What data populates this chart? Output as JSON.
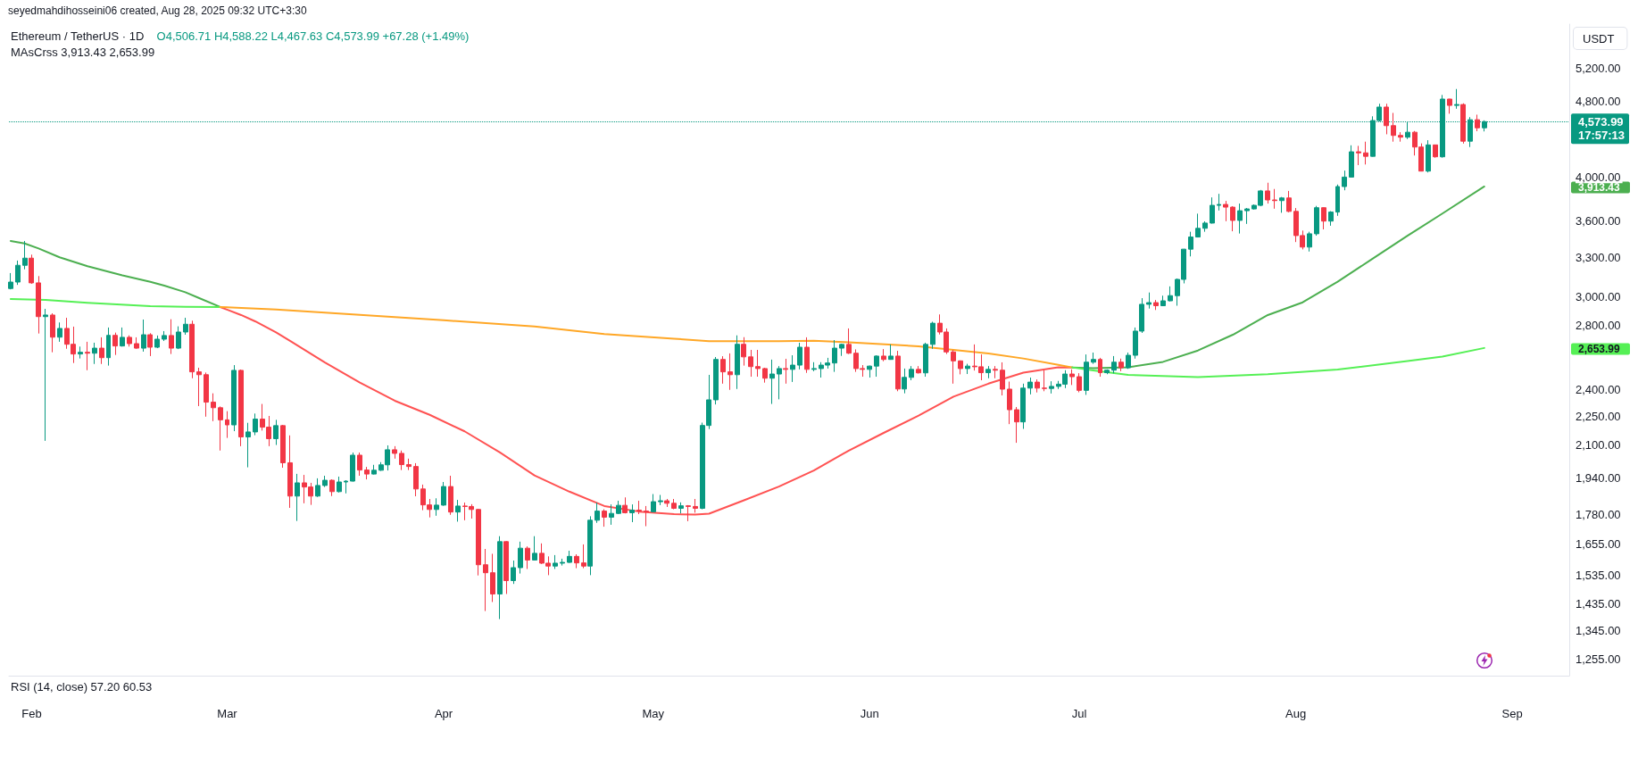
{
  "chart_data": {
    "type": "candlestick",
    "title": "Ethereum / TetherUS · 1D",
    "subtitle": "O4,506.71 H4,588.22 L4,467.63 C4,573.99 +67.28 (+1.49%)",
    "ylabel": "USDT",
    "annotations": [
      "seyedmahdihosseini06 created, Aug 28, 2025 09:32 UTC+3:30",
      "MAsCrss 3,913.43 2,653.99",
      "RSI (14, close) 57.20 60.53",
      "17:57:13",
      "3,913.43",
      "2,653.99"
    ],
    "x": [
      "2025-01-29",
      "2025-01-30",
      "2025-01-31",
      "2025-02-01",
      "2025-02-02",
      "2025-02-03",
      "2025-02-04",
      "2025-02-05",
      "2025-02-06",
      "2025-02-07",
      "2025-02-08",
      "2025-02-09",
      "2025-02-10",
      "2025-02-11",
      "2025-02-12",
      "2025-02-13",
      "2025-02-14",
      "2025-02-15",
      "2025-02-16",
      "2025-02-17",
      "2025-02-18",
      "2025-02-19",
      "2025-02-20",
      "2025-02-21",
      "2025-02-22",
      "2025-02-23",
      "2025-02-24",
      "2025-02-25",
      "2025-02-26",
      "2025-02-27",
      "2025-02-28",
      "2025-03-01",
      "2025-03-02",
      "2025-03-03",
      "2025-03-04",
      "2025-03-05",
      "2025-03-06",
      "2025-03-07",
      "2025-03-08",
      "2025-03-09",
      "2025-03-10",
      "2025-03-11",
      "2025-03-12",
      "2025-03-13",
      "2025-03-14",
      "2025-03-15",
      "2025-03-16",
      "2025-03-17",
      "2025-03-18",
      "2025-03-19",
      "2025-03-20",
      "2025-03-21",
      "2025-03-22",
      "2025-03-23",
      "2025-03-24",
      "2025-03-25",
      "2025-03-26",
      "2025-03-27",
      "2025-03-28",
      "2025-03-29",
      "2025-03-30",
      "2025-03-31",
      "2025-04-01",
      "2025-04-02",
      "2025-04-03",
      "2025-04-04",
      "2025-04-05",
      "2025-04-06",
      "2025-04-07",
      "2025-04-08",
      "2025-04-09",
      "2025-04-10",
      "2025-04-11",
      "2025-04-12",
      "2025-04-13",
      "2025-04-14",
      "2025-04-15",
      "2025-04-16",
      "2025-04-17",
      "2025-04-18",
      "2025-04-19",
      "2025-04-20",
      "2025-04-21",
      "2025-04-22",
      "2025-04-23",
      "2025-04-24",
      "2025-04-25",
      "2025-04-26",
      "2025-04-27",
      "2025-04-28",
      "2025-04-29",
      "2025-04-30",
      "2025-05-01",
      "2025-05-02",
      "2025-05-03",
      "2025-05-04",
      "2025-05-05",
      "2025-05-06",
      "2025-05-07",
      "2025-05-08",
      "2025-05-09",
      "2025-05-10",
      "2025-05-11",
      "2025-05-12",
      "2025-05-13",
      "2025-05-14",
      "2025-05-15",
      "2025-05-16",
      "2025-05-17",
      "2025-05-18",
      "2025-05-19",
      "2025-05-20",
      "2025-05-21",
      "2025-05-22",
      "2025-05-23",
      "2025-05-24",
      "2025-05-25",
      "2025-05-26",
      "2025-05-27",
      "2025-05-28",
      "2025-05-29",
      "2025-05-30",
      "2025-05-31",
      "2025-06-01",
      "2025-06-02",
      "2025-06-03",
      "2025-06-04",
      "2025-06-05",
      "2025-06-06",
      "2025-06-07",
      "2025-06-08",
      "2025-06-09",
      "2025-06-10",
      "2025-06-11",
      "2025-06-12",
      "2025-06-13",
      "2025-06-14",
      "2025-06-15",
      "2025-06-16",
      "2025-06-17",
      "2025-06-18",
      "2025-06-19",
      "2025-06-20",
      "2025-06-21",
      "2025-06-22",
      "2025-06-23",
      "2025-06-24",
      "2025-06-25",
      "2025-06-26",
      "2025-06-27",
      "2025-06-28",
      "2025-06-29",
      "2025-06-30",
      "2025-07-01",
      "2025-07-02",
      "2025-07-03",
      "2025-07-04",
      "2025-07-05",
      "2025-07-06",
      "2025-07-07",
      "2025-07-08",
      "2025-07-09",
      "2025-07-10",
      "2025-07-11",
      "2025-07-12",
      "2025-07-13",
      "2025-07-14",
      "2025-07-15",
      "2025-07-16",
      "2025-07-17",
      "2025-07-18",
      "2025-07-19",
      "2025-07-20",
      "2025-07-21",
      "2025-07-22",
      "2025-07-23",
      "2025-07-24",
      "2025-07-25",
      "2025-07-26",
      "2025-07-27",
      "2025-07-28",
      "2025-07-29",
      "2025-07-30",
      "2025-07-31",
      "2025-08-01",
      "2025-08-02",
      "2025-08-03",
      "2025-08-04",
      "2025-08-05",
      "2025-08-06",
      "2025-08-07",
      "2025-08-08",
      "2025-08-09",
      "2025-08-10",
      "2025-08-11",
      "2025-08-12",
      "2025-08-13",
      "2025-08-14",
      "2025-08-15",
      "2025-08-16",
      "2025-08-17",
      "2025-08-18",
      "2025-08-19",
      "2025-08-20",
      "2025-08-21",
      "2025-08-22",
      "2025-08-23",
      "2025-08-24",
      "2025-08-25",
      "2025-08-26",
      "2025-08-27",
      "2025-08-28"
    ],
    "ohlc": [
      [
        3062,
        3178,
        3056,
        3110
      ],
      [
        3110,
        3275,
        3089,
        3238
      ],
      [
        3238,
        3433,
        3207,
        3294
      ],
      [
        3294,
        3322,
        3097,
        3104
      ],
      [
        3104,
        3155,
        2748,
        2862
      ],
      [
        2862,
        2916,
        2123,
        2873
      ],
      [
        2873,
        2885,
        2627,
        2724
      ],
      [
        2724,
        2822,
        2694,
        2782
      ],
      [
        2782,
        2854,
        2649,
        2678
      ],
      [
        2678,
        2794,
        2560,
        2616
      ],
      [
        2616,
        2663,
        2588,
        2627
      ],
      [
        2627,
        2694,
        2516,
        2621
      ],
      [
        2621,
        2688,
        2554,
        2653
      ],
      [
        2653,
        2723,
        2554,
        2593
      ],
      [
        2593,
        2788,
        2544,
        2736
      ],
      [
        2736,
        2754,
        2610,
        2667
      ],
      [
        2667,
        2788,
        2663,
        2723
      ],
      [
        2723,
        2736,
        2663,
        2682
      ],
      [
        2682,
        2723,
        2649,
        2653
      ],
      [
        2653,
        2842,
        2631,
        2740
      ],
      [
        2740,
        2750,
        2603,
        2659
      ],
      [
        2659,
        2735,
        2653,
        2711
      ],
      [
        2711,
        2764,
        2699,
        2735
      ],
      [
        2735,
        2844,
        2616,
        2653
      ],
      [
        2653,
        2796,
        2647,
        2758
      ],
      [
        2758,
        2854,
        2740,
        2810
      ],
      [
        2810,
        2834,
        2468,
        2506
      ],
      [
        2506,
        2531,
        2308,
        2489
      ],
      [
        2489,
        2502,
        2250,
        2330
      ],
      [
        2330,
        2380,
        2226,
        2299
      ],
      [
        2299,
        2306,
        2074,
        2233
      ],
      [
        2233,
        2280,
        2138,
        2206
      ],
      [
        2206,
        2547,
        2173,
        2515
      ],
      [
        2515,
        2520,
        2096,
        2143
      ],
      [
        2143,
        2217,
        1992,
        2169
      ],
      [
        2169,
        2267,
        2152,
        2237
      ],
      [
        2237,
        2320,
        2176,
        2194
      ],
      [
        2194,
        2254,
        2096,
        2134
      ],
      [
        2134,
        2233,
        2102,
        2202
      ],
      [
        2202,
        2206,
        1990,
        2014
      ],
      [
        2014,
        2151,
        1807,
        1859
      ],
      [
        1859,
        1961,
        1751,
        1919
      ],
      [
        1919,
        1956,
        1827,
        1900
      ],
      [
        1900,
        1919,
        1820,
        1859
      ],
      [
        1859,
        1940,
        1855,
        1907
      ],
      [
        1907,
        1952,
        1900,
        1931
      ],
      [
        1931,
        1935,
        1859,
        1879
      ],
      [
        1879,
        1948,
        1875,
        1923
      ],
      [
        1923,
        1931,
        1871,
        1927
      ],
      [
        1927,
        2064,
        1925,
        2051
      ],
      [
        2051,
        2064,
        1952,
        1979
      ],
      [
        1979,
        1994,
        1935,
        1960
      ],
      [
        1960,
        2004,
        1958,
        1978
      ],
      [
        1978,
        2017,
        1975,
        2004
      ],
      [
        2004,
        2100,
        1977,
        2078
      ],
      [
        2078,
        2096,
        2034,
        2060
      ],
      [
        2060,
        2074,
        1979,
        2005
      ],
      [
        2005,
        2034,
        1979,
        1996
      ],
      [
        1996,
        2012,
        1858,
        1891
      ],
      [
        1891,
        1911,
        1797,
        1820
      ],
      [
        1820,
        1846,
        1766,
        1800
      ],
      [
        1800,
        1849,
        1773,
        1819
      ],
      [
        1819,
        1923,
        1816,
        1902
      ],
      [
        1902,
        1952,
        1777,
        1789
      ],
      [
        1789,
        1842,
        1748,
        1815
      ],
      [
        1815,
        1830,
        1754,
        1813
      ],
      [
        1813,
        1823,
        1761,
        1800
      ],
      [
        1800,
        1803,
        1536,
        1576
      ],
      [
        1576,
        1637,
        1410,
        1546
      ],
      [
        1546,
        1618,
        1441,
        1469
      ],
      [
        1469,
        1688,
        1383,
        1666
      ],
      [
        1666,
        1668,
        1469,
        1517
      ],
      [
        1517,
        1592,
        1505,
        1565
      ],
      [
        1565,
        1666,
        1543,
        1640
      ],
      [
        1640,
        1647,
        1560,
        1594
      ],
      [
        1594,
        1688,
        1592,
        1620
      ],
      [
        1620,
        1659,
        1579,
        1582
      ],
      [
        1582,
        1608,
        1537,
        1571
      ],
      [
        1571,
        1613,
        1560,
        1582
      ],
      [
        1582,
        1599,
        1573,
        1585
      ],
      [
        1585,
        1630,
        1583,
        1608
      ],
      [
        1608,
        1616,
        1563,
        1583
      ],
      [
        1583,
        1655,
        1563,
        1571
      ],
      [
        1571,
        1771,
        1537,
        1754
      ],
      [
        1754,
        1830,
        1743,
        1793
      ],
      [
        1793,
        1801,
        1727,
        1767
      ],
      [
        1767,
        1822,
        1735,
        1783
      ],
      [
        1783,
        1838,
        1780,
        1818
      ],
      [
        1818,
        1853,
        1783,
        1786
      ],
      [
        1786,
        1822,
        1746,
        1797
      ],
      [
        1797,
        1838,
        1780,
        1793
      ],
      [
        1793,
        1815,
        1729,
        1790
      ],
      [
        1790,
        1868,
        1788,
        1834
      ],
      [
        1834,
        1864,
        1819,
        1838
      ],
      [
        1838,
        1846,
        1811,
        1827
      ],
      [
        1827,
        1846,
        1801,
        1805
      ],
      [
        1805,
        1831,
        1783,
        1816
      ],
      [
        1816,
        1819,
        1750,
        1813
      ],
      [
        1813,
        1846,
        1786,
        1805
      ],
      [
        1805,
        2218,
        1801,
        2203
      ],
      [
        2203,
        2488,
        2184,
        2343
      ],
      [
        2343,
        2597,
        2317,
        2582
      ],
      [
        2582,
        2602,
        2436,
        2506
      ],
      [
        2506,
        2620,
        2400,
        2489
      ],
      [
        2489,
        2736,
        2405,
        2678
      ],
      [
        2678,
        2724,
        2544,
        2598
      ],
      [
        2598,
        2642,
        2477,
        2538
      ],
      [
        2538,
        2642,
        2477,
        2526
      ],
      [
        2526,
        2531,
        2442,
        2468
      ],
      [
        2468,
        2581,
        2320,
        2493
      ],
      [
        2493,
        2541,
        2346,
        2526
      ],
      [
        2526,
        2586,
        2436,
        2521
      ],
      [
        2521,
        2608,
        2446,
        2547
      ],
      [
        2547,
        2688,
        2521,
        2659
      ],
      [
        2659,
        2723,
        2500,
        2521
      ],
      [
        2521,
        2565,
        2510,
        2526
      ],
      [
        2526,
        2565,
        2472,
        2547
      ],
      [
        2547,
        2592,
        2526,
        2560
      ],
      [
        2560,
        2705,
        2506,
        2653
      ],
      [
        2653,
        2682,
        2604,
        2677
      ],
      [
        2677,
        2782,
        2616,
        2621
      ],
      [
        2621,
        2645,
        2506,
        2526
      ],
      [
        2526,
        2547,
        2477,
        2521
      ],
      [
        2521,
        2544,
        2472,
        2541
      ],
      [
        2541,
        2608,
        2477,
        2603
      ],
      [
        2603,
        2647,
        2571,
        2582
      ],
      [
        2582,
        2677,
        2580,
        2603
      ],
      [
        2603,
        2636,
        2392,
        2405
      ],
      [
        2405,
        2526,
        2380,
        2473
      ],
      [
        2473,
        2541,
        2456,
        2521
      ],
      [
        2521,
        2541,
        2496,
        2500
      ],
      [
        2500,
        2688,
        2477,
        2677
      ],
      [
        2677,
        2827,
        2649,
        2817
      ],
      [
        2817,
        2877,
        2742,
        2758
      ],
      [
        2758,
        2782,
        2616,
        2629
      ],
      [
        2629,
        2641,
        2436,
        2573
      ],
      [
        2573,
        2576,
        2491,
        2526
      ],
      [
        2526,
        2555,
        2493,
        2541
      ],
      [
        2541,
        2677,
        2514,
        2537
      ],
      [
        2537,
        2613,
        2456,
        2501
      ],
      [
        2501,
        2541,
        2468,
        2521
      ],
      [
        2521,
        2541,
        2468,
        2516
      ],
      [
        2516,
        2564,
        2368,
        2404
      ],
      [
        2404,
        2448,
        2210,
        2288
      ],
      [
        2288,
        2303,
        2113,
        2222
      ],
      [
        2222,
        2436,
        2185,
        2410
      ],
      [
        2410,
        2472,
        2374,
        2445
      ],
      [
        2445,
        2461,
        2385,
        2410
      ],
      [
        2410,
        2516,
        2392,
        2408
      ],
      [
        2408,
        2450,
        2379,
        2420
      ],
      [
        2420,
        2452,
        2405,
        2433
      ],
      [
        2433,
        2516,
        2410,
        2493
      ],
      [
        2493,
        2521,
        2428,
        2477
      ],
      [
        2477,
        2498,
        2386,
        2397
      ],
      [
        2397,
        2613,
        2371,
        2565
      ],
      [
        2565,
        2625,
        2555,
        2582
      ],
      [
        2582,
        2592,
        2477,
        2501
      ],
      [
        2501,
        2521,
        2492,
        2516
      ],
      [
        2516,
        2603,
        2497,
        2565
      ],
      [
        2565,
        2587,
        2510,
        2531
      ],
      [
        2531,
        2625,
        2524,
        2608
      ],
      [
        2608,
        2788,
        2587,
        2764
      ],
      [
        2764,
        2992,
        2752,
        2948
      ],
      [
        2948,
        3033,
        2918,
        2960
      ],
      [
        2960,
        2979,
        2908,
        2938
      ],
      [
        2938,
        3010,
        2936,
        2973
      ],
      [
        2973,
        3078,
        2969,
        3010
      ],
      [
        3010,
        3137,
        2938,
        3130
      ],
      [
        3130,
        3368,
        3100,
        3366
      ],
      [
        3366,
        3510,
        3308,
        3466
      ],
      [
        3466,
        3666,
        3462,
        3539
      ],
      [
        3539,
        3599,
        3510,
        3584
      ],
      [
        3584,
        3812,
        3580,
        3740
      ],
      [
        3740,
        3845,
        3694,
        3748
      ],
      [
        3748,
        3780,
        3600,
        3724
      ],
      [
        3724,
        3732,
        3514,
        3607
      ],
      [
        3607,
        3756,
        3495,
        3692
      ],
      [
        3692,
        3716,
        3577,
        3708
      ],
      [
        3708,
        3748,
        3703,
        3740
      ],
      [
        3740,
        3881,
        3732,
        3872
      ],
      [
        3872,
        3949,
        3756,
        3789
      ],
      [
        3789,
        3890,
        3710,
        3783
      ],
      [
        3783,
        3816,
        3674,
        3807
      ],
      [
        3807,
        3872,
        3678,
        3686
      ],
      [
        3686,
        3716,
        3424,
        3478
      ],
      [
        3478,
        3520,
        3364,
        3383
      ],
      [
        3383,
        3510,
        3347,
        3493
      ],
      [
        3493,
        3735,
        3477,
        3719
      ],
      [
        3719,
        3722,
        3530,
        3601
      ],
      [
        3601,
        3688,
        3561,
        3680
      ],
      [
        3680,
        3932,
        3647,
        3913
      ],
      [
        3913,
        4066,
        3878,
        4003
      ],
      [
        4003,
        4321,
        3998,
        4254
      ],
      [
        4254,
        4315,
        4120,
        4243
      ],
      [
        4243,
        4359,
        4126,
        4208
      ],
      [
        4208,
        4633,
        4205,
        4586
      ],
      [
        4586,
        4775,
        4576,
        4737
      ],
      [
        4737,
        4775,
        4437,
        4530
      ],
      [
        4530,
        4671,
        4359,
        4425
      ],
      [
        4425,
        4459,
        4359,
        4406
      ],
      [
        4406,
        4567,
        4387,
        4459
      ],
      [
        4459,
        4472,
        4216,
        4303
      ],
      [
        4303,
        4341,
        4058,
        4061
      ],
      [
        4061,
        4374,
        4048,
        4325
      ],
      [
        4325,
        4328,
        4194,
        4203
      ],
      [
        4203,
        4877,
        4194,
        4829
      ],
      [
        4829,
        4832,
        4662,
        4756
      ],
      [
        4756,
        4947,
        4718,
        4766
      ],
      [
        4766,
        4780,
        4339,
        4364
      ],
      [
        4364,
        4624,
        4303,
        4595
      ],
      [
        4595,
        4651,
        4470,
        4506.71
      ],
      [
        4506.71,
        4588.22,
        4467.63,
        4573.99
      ]
    ],
    "colors": [
      "#089981",
      "#089981",
      "#089981",
      "#f23645",
      "#f23645",
      "#089981",
      "#f23645",
      "#089981",
      "#f23645",
      "#f23645",
      "#089981",
      "#f23645",
      "#089981",
      "#f23645",
      "#089981",
      "#f23645",
      "#089981",
      "#f23645",
      "#f23645",
      "#089981",
      "#f23645",
      "#089981",
      "#089981",
      "#f23645",
      "#089981",
      "#089981",
      "#f23645",
      "#f23645",
      "#f23645",
      "#f23645",
      "#f23645",
      "#f23645",
      "#089981",
      "#f23645",
      "#089981",
      "#089981",
      "#f23645",
      "#f23645",
      "#089981",
      "#f23645",
      "#f23645",
      "#089981",
      "#f23645",
      "#f23645",
      "#089981",
      "#089981",
      "#f23645",
      "#089981",
      "#089981",
      "#089981",
      "#f23645",
      "#f23645",
      "#089981",
      "#089981",
      "#089981",
      "#f23645",
      "#f23645",
      "#f23645",
      "#f23645",
      "#f23645",
      "#f23645",
      "#089981",
      "#089981",
      "#f23645",
      "#089981",
      "#f23645",
      "#f23645",
      "#f23645",
      "#f23645",
      "#f23645",
      "#089981",
      "#f23645",
      "#089981",
      "#089981",
      "#f23645",
      "#089981",
      "#f23645",
      "#f23645",
      "#089981",
      "#089981",
      "#089981",
      "#f23645",
      "#f23645",
      "#089981",
      "#089981",
      "#f23645",
      "#089981",
      "#089981",
      "#f23645",
      "#089981",
      "#f23645",
      "#f23645",
      "#089981",
      "#089981",
      "#f23645",
      "#f23645",
      "#089981",
      "#f23645",
      "#f23645",
      "#089981",
      "#089981",
      "#089981",
      "#f23645",
      "#f23645",
      "#089981",
      "#f23645",
      "#f23645",
      "#f23645",
      "#f23645",
      "#089981",
      "#089981",
      "#f23645",
      "#089981",
      "#089981",
      "#f23645",
      "#089981",
      "#089981",
      "#089981",
      "#089981",
      "#089981",
      "#f23645",
      "#f23645",
      "#f23645",
      "#089981",
      "#089981",
      "#f23645",
      "#089981",
      "#f23645",
      "#089981",
      "#089981",
      "#f23645",
      "#089981",
      "#089981",
      "#f23645",
      "#f23645",
      "#f23645",
      "#f23645",
      "#089981",
      "#f23645",
      "#f23645",
      "#089981",
      "#f23645",
      "#f23645",
      "#f23645",
      "#f23645",
      "#089981",
      "#089981",
      "#f23645",
      "#f23645",
      "#089981",
      "#089981",
      "#089981",
      "#f23645",
      "#f23645",
      "#089981",
      "#089981",
      "#f23645",
      "#089981",
      "#089981",
      "#f23645",
      "#089981",
      "#089981",
      "#089981",
      "#089981",
      "#f23645",
      "#089981",
      "#089981",
      "#089981",
      "#089981",
      "#089981",
      "#089981",
      "#089981",
      "#089981",
      "#089981",
      "#f23645",
      "#f23645",
      "#089981",
      "#089981",
      "#089981",
      "#089981",
      "#f23645",
      "#f23645",
      "#089981",
      "#f23645",
      "#f23645",
      "#f23645",
      "#089981",
      "#089981",
      "#f23645",
      "#089981",
      "#089981",
      "#089981",
      "#089981",
      "#f23645",
      "#f23645",
      "#089981",
      "#089981",
      "#f23645",
      "#f23645",
      "#f23645",
      "#089981",
      "#f23645",
      "#f23645",
      "#089981",
      "#f23645",
      "#089981",
      "#f23645",
      "#089981",
      "#f23645",
      "#089981",
      "#f23645",
      "#089981"
    ],
    "series": [
      {
        "type": "line",
        "color": "#4caf50",
        "x": [
          "2025-01-29",
          "2025-01-31",
          "2025-02-02",
          "2025-02-05",
          "2025-02-09",
          "2025-02-14",
          "2025-02-18",
          "2025-02-20",
          "2025-02-23",
          "2025-02-25",
          "2025-02-28"
        ],
        "values": [
          3433,
          3413,
          3372,
          3301,
          3231,
          3161,
          3112,
          3084,
          3035,
          2992,
          2929
        ]
      },
      {
        "type": "line",
        "color": "#ff5252",
        "x": [
          "2025-02-28",
          "2025-03-03",
          "2025-03-05",
          "2025-03-08",
          "2025-03-10",
          "2025-03-15",
          "2025-03-20",
          "2025-03-25",
          "2025-03-30",
          "2025-04-04",
          "2025-04-09",
          "2025-04-14",
          "2025-04-19",
          "2025-04-24",
          "2025-04-29",
          "2025-05-04",
          "2025-05-07",
          "2025-05-09",
          "2025-05-14",
          "2025-05-19",
          "2025-05-24",
          "2025-05-29",
          "2025-06-03",
          "2025-06-08",
          "2025-06-13",
          "2025-06-18",
          "2025-06-23",
          "2025-06-28",
          "2025-06-30"
        ],
        "values": [
          2929,
          2873,
          2830,
          2756,
          2700,
          2563,
          2442,
          2338,
          2260,
          2172,
          2066,
          1954,
          1879,
          1815,
          1791,
          1780,
          1778,
          1782,
          1840,
          1902,
          1977,
          2074,
          2164,
          2256,
          2361,
          2436,
          2501,
          2534,
          2533
        ]
      },
      {
        "type": "line",
        "color": "#4caf50",
        "x": [
          "2025-06-30",
          "2025-07-03",
          "2025-07-08",
          "2025-07-13",
          "2025-07-18",
          "2025-07-23",
          "2025-07-28",
          "2025-08-02",
          "2025-08-07",
          "2025-08-12",
          "2025-08-17",
          "2025-08-22",
          "2025-08-28"
        ],
        "values": [
          2533,
          2528,
          2534,
          2567,
          2638,
          2740,
          2873,
          2962,
          3113,
          3289,
          3476,
          3667,
          3913.43
        ]
      },
      {
        "type": "line",
        "color": "#55f055",
        "x": [
          "2025-01-29",
          "2025-02-03",
          "2025-02-09",
          "2025-02-18",
          "2025-02-23",
          "2025-02-28"
        ],
        "values": [
          2986,
          2979,
          2958,
          2935,
          2931,
          2929
        ]
      },
      {
        "type": "line",
        "color": "#ffa726",
        "x": [
          "2025-02-28",
          "2025-03-08",
          "2025-03-20",
          "2025-04-01",
          "2025-04-14",
          "2025-04-24",
          "2025-05-04",
          "2025-05-09",
          "2025-05-19",
          "2025-05-24",
          "2025-05-29",
          "2025-06-08",
          "2025-06-18",
          "2025-06-23",
          "2025-06-28",
          "2025-06-30"
        ],
        "values": [
          2929,
          2912,
          2874,
          2837,
          2795,
          2745,
          2714,
          2698,
          2698,
          2701,
          2691,
          2665,
          2619,
          2588,
          2549,
          2533
        ]
      },
      {
        "type": "line",
        "color": "#55f055",
        "x": [
          "2025-06-30",
          "2025-07-03",
          "2025-07-08",
          "2025-07-18",
          "2025-07-28",
          "2025-08-07",
          "2025-08-17",
          "2025-08-22",
          "2025-08-28"
        ],
        "values": [
          2533,
          2515,
          2488,
          2474,
          2492,
          2520,
          2572,
          2600,
          2653.99
        ]
      }
    ],
    "xlim": [
      "2025-01-28T18:00",
      "2025-09-09T04:00"
    ],
    "xticks": [
      {
        "value": "2025-02-01",
        "label": "Feb"
      },
      {
        "value": "2025-03-01",
        "label": "Mar"
      },
      {
        "value": "2025-04-01",
        "label": "Apr"
      },
      {
        "value": "2025-05-01",
        "label": "May"
      },
      {
        "value": "2025-06-01",
        "label": "Jun"
      },
      {
        "value": "2025-07-01",
        "label": "Jul"
      },
      {
        "value": "2025-08-01",
        "label": "Aug"
      },
      {
        "value": "2025-09-01",
        "label": "Sep"
      }
    ],
    "ylim": [
      1207,
      5783
    ],
    "yticks": [
      {
        "value": 1255,
        "label": "1,255.00"
      },
      {
        "value": 1345,
        "label": "1,345.00"
      },
      {
        "value": 1435,
        "label": "1,435.00"
      },
      {
        "value": 1535,
        "label": "1,535.00"
      },
      {
        "value": 1655,
        "label": "1,655.00"
      },
      {
        "value": 1780,
        "label": "1,780.00"
      },
      {
        "value": 1940,
        "label": "1,940.00"
      },
      {
        "value": 2100,
        "label": "2,100.00"
      },
      {
        "value": 2250,
        "label": "2,250.00"
      },
      {
        "value": 2400,
        "label": "2,400.00"
      },
      {
        "value": 2800,
        "label": "2,800.00"
      },
      {
        "value": 3000,
        "label": "3,000.00"
      },
      {
        "value": 3300,
        "label": "3,300.00"
      },
      {
        "value": 3600,
        "label": "3,600.00"
      },
      {
        "value": 4000,
        "label": "4,000.00"
      },
      {
        "value": 4800,
        "label": "4,800.00"
      },
      {
        "value": 5200,
        "label": "5,200.00"
      }
    ],
    "ref_lines": [
      {
        "axis": "y",
        "value": 4573.99,
        "label": "4,573.99",
        "color": "#089981",
        "line_style": "dotted"
      }
    ],
    "log": true,
    "grid": false
  }
}
